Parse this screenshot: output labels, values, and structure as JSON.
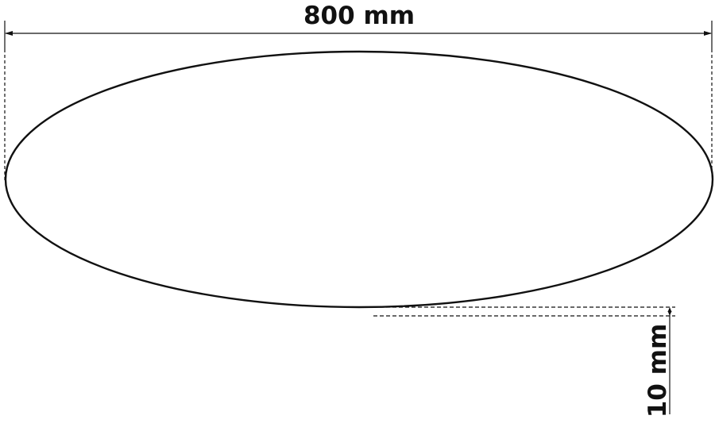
{
  "diagram": {
    "width_label": "800 mm",
    "thickness_label": "10 mm",
    "line_color": "#111111",
    "background": "#ffffff"
  }
}
